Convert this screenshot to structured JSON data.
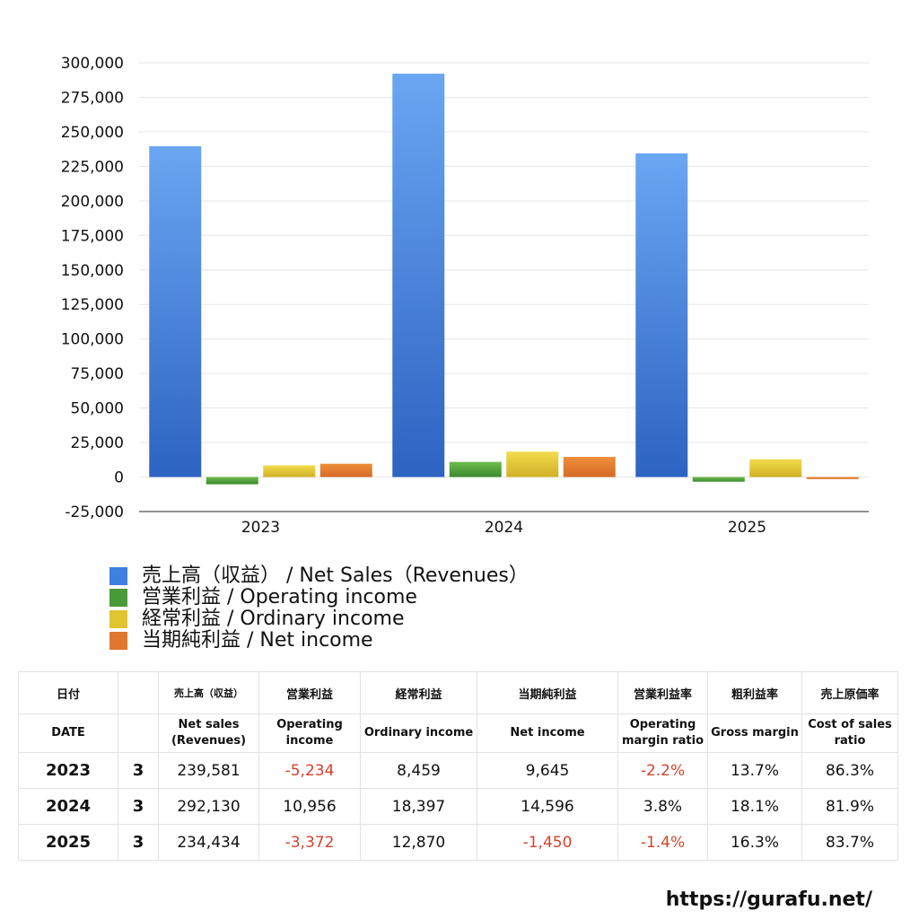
{
  "chart_data": {
    "type": "bar",
    "categories": [
      "2023",
      "2024",
      "2025"
    ],
    "series": [
      {
        "name": "売上高（収益） / Net Sales（Revenues）",
        "values": [
          239581,
          292130,
          234434
        ],
        "color": "#3f7fe0"
      },
      {
        "name": "営業利益 / Operating income",
        "values": [
          -5234,
          10956,
          -3372
        ],
        "color": "#4b9a3a"
      },
      {
        "name": "経常利益 / Ordinary income",
        "values": [
          8459,
          18397,
          12870
        ],
        "color": "#e2c431"
      },
      {
        "name": "当期純利益 / Net income",
        "values": [
          9645,
          14596,
          -1450
        ],
        "color": "#e0772e"
      }
    ],
    "ylim": [
      -25000,
      300000
    ],
    "yticks": [
      "300,000",
      "275,000",
      "250,000",
      "225,000",
      "200,000",
      "175,000",
      "150,000",
      "125,000",
      "100,000",
      "75,000",
      "50,000",
      "25,000",
      "0",
      "-25,000"
    ],
    "ytick_values": [
      300000,
      275000,
      250000,
      225000,
      200000,
      175000,
      150000,
      125000,
      100000,
      75000,
      50000,
      25000,
      0,
      -25000
    ],
    "grid": true,
    "legend_position": "bottom-left"
  },
  "table": {
    "header_jp": [
      "日付",
      "",
      "売上高（収益）",
      "営業利益",
      "経常利益",
      "当期純利益",
      "営業利益率",
      "粗利益率",
      "売上原価率"
    ],
    "header_en": [
      "DATE",
      "",
      "Net sales\n(Revenues)",
      "Operating\nincome",
      "Ordinary income",
      "Net income",
      "Operating\nmargin ratio",
      "Gross margin",
      "Cost of sales\nratio"
    ],
    "rows": [
      {
        "year": "2023",
        "month": "3",
        "net_sales": "239,581",
        "operating": "-5,234",
        "ordinary": "8,459",
        "net_income": "9,645",
        "op_margin": "-2.2%",
        "gross_margin": "13.7%",
        "cost_ratio": "86.3%"
      },
      {
        "year": "2024",
        "month": "3",
        "net_sales": "292,130",
        "operating": "10,956",
        "ordinary": "18,397",
        "net_income": "14,596",
        "op_margin": "3.8%",
        "gross_margin": "18.1%",
        "cost_ratio": "81.9%"
      },
      {
        "year": "2025",
        "month": "3",
        "net_sales": "234,434",
        "operating": "-3,372",
        "ordinary": "12,870",
        "net_income": "-1,450",
        "op_margin": "-1.4%",
        "gross_margin": "16.3%",
        "cost_ratio": "83.7%"
      }
    ]
  },
  "footer": {
    "url": "https://gurafu.net/"
  }
}
